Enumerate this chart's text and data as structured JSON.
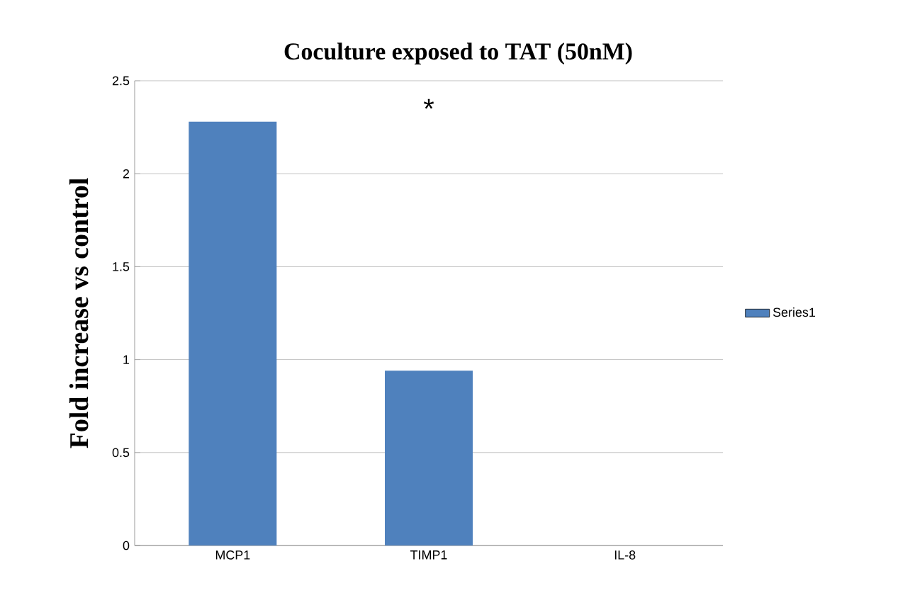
{
  "chart_data": {
    "type": "bar",
    "title": "Coculture exposed to TAT (50nM)",
    "ylabel": "Fold increase vs control",
    "categories": [
      "MCP1",
      "TIMP1",
      "IL-8"
    ],
    "series": [
      {
        "name": "Series1",
        "color": "#4f81bd",
        "values": [
          2.28,
          0.94,
          0
        ]
      }
    ],
    "ylim": [
      0,
      2.5
    ],
    "yticks": [
      0,
      0.5,
      1,
      1.5,
      2,
      2.5
    ],
    "grid": "y",
    "legend": "right",
    "annotations": [
      "*"
    ]
  }
}
